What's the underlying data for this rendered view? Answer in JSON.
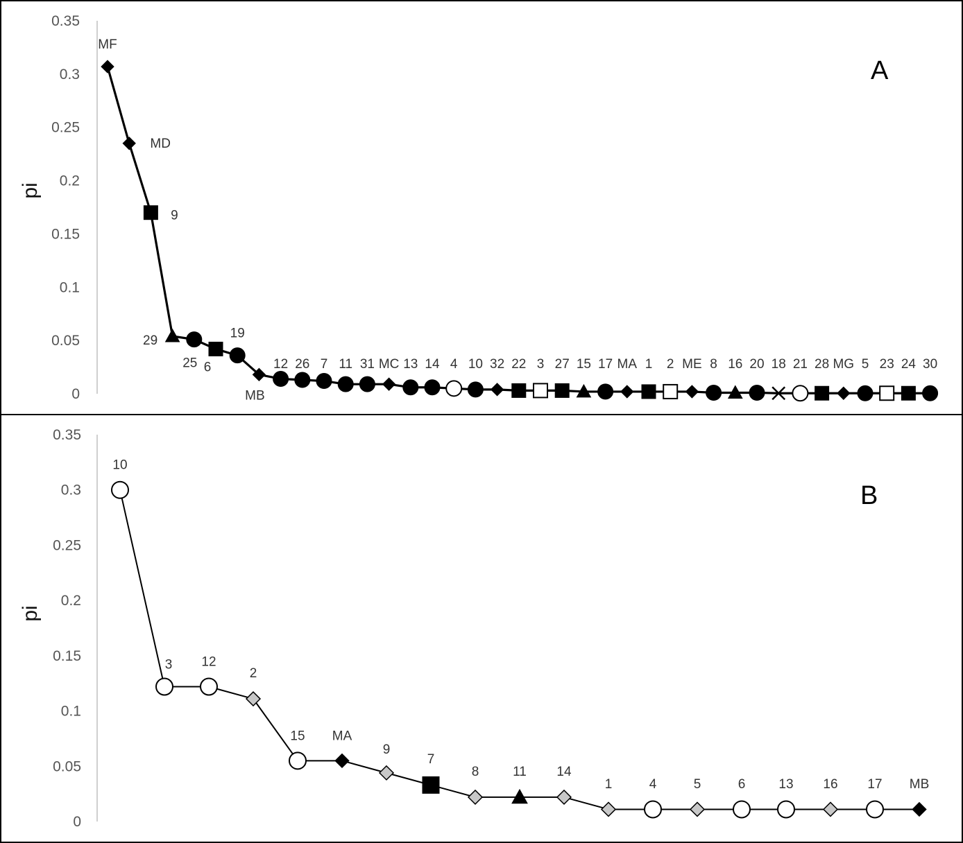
{
  "chart_data": [
    {
      "panel": "A",
      "type": "line",
      "ylabel": "pi",
      "ylim": [
        0,
        0.35
      ],
      "yticks": [
        "0",
        "0.05",
        "0.1",
        "0.15",
        "0.2",
        "0.25",
        "0.3",
        "0.35"
      ],
      "points": [
        {
          "label": "MF",
          "value": 0.307,
          "marker": "diamond",
          "fill": "black"
        },
        {
          "label": "MD",
          "value": 0.235,
          "marker": "diamond",
          "fill": "black"
        },
        {
          "label": "9",
          "value": 0.17,
          "marker": "square",
          "fill": "black"
        },
        {
          "label": "29",
          "value": 0.054,
          "marker": "triangle",
          "fill": "black"
        },
        {
          "label": "25",
          "value": 0.051,
          "marker": "circle",
          "fill": "black"
        },
        {
          "label": "6",
          "value": 0.042,
          "marker": "square",
          "fill": "black"
        },
        {
          "label": "19",
          "value": 0.036,
          "marker": "circle",
          "fill": "black"
        },
        {
          "label": "MB",
          "value": 0.018,
          "marker": "diamond",
          "fill": "black"
        },
        {
          "label": "12",
          "value": 0.014,
          "marker": "circle",
          "fill": "black"
        },
        {
          "label": "26",
          "value": 0.013,
          "marker": "circle",
          "fill": "black"
        },
        {
          "label": "7",
          "value": 0.012,
          "marker": "circle",
          "fill": "black"
        },
        {
          "label": "11",
          "value": 0.009,
          "marker": "circle",
          "fill": "black"
        },
        {
          "label": "31",
          "value": 0.009,
          "marker": "circle",
          "fill": "black"
        },
        {
          "label": "MC",
          "value": 0.009,
          "marker": "diamond",
          "fill": "black"
        },
        {
          "label": "13",
          "value": 0.006,
          "marker": "circle",
          "fill": "black"
        },
        {
          "label": "14",
          "value": 0.006,
          "marker": "circle",
          "fill": "black"
        },
        {
          "label": "4",
          "value": 0.005,
          "marker": "circle",
          "fill": "white"
        },
        {
          "label": "10",
          "value": 0.004,
          "marker": "circle",
          "fill": "black"
        },
        {
          "label": "32",
          "value": 0.004,
          "marker": "diamond",
          "fill": "black"
        },
        {
          "label": "22",
          "value": 0.003,
          "marker": "square",
          "fill": "black"
        },
        {
          "label": "3",
          "value": 0.003,
          "marker": "square",
          "fill": "white"
        },
        {
          "label": "27",
          "value": 0.003,
          "marker": "square",
          "fill": "black"
        },
        {
          "label": "15",
          "value": 0.002,
          "marker": "triangle",
          "fill": "black"
        },
        {
          "label": "17",
          "value": 0.002,
          "marker": "circle",
          "fill": "black"
        },
        {
          "label": "MA",
          "value": 0.002,
          "marker": "diamond",
          "fill": "black"
        },
        {
          "label": "1",
          "value": 0.002,
          "marker": "square",
          "fill": "black"
        },
        {
          "label": "2",
          "value": 0.002,
          "marker": "square",
          "fill": "white"
        },
        {
          "label": "ME",
          "value": 0.002,
          "marker": "diamond",
          "fill": "black"
        },
        {
          "label": "8",
          "value": 0.001,
          "marker": "circle",
          "fill": "black"
        },
        {
          "label": "16",
          "value": 0.001,
          "marker": "triangle",
          "fill": "black"
        },
        {
          "label": "20",
          "value": 0.001,
          "marker": "circle",
          "fill": "black"
        },
        {
          "label": "18",
          "value": 0.0005,
          "marker": "cross",
          "fill": "black"
        },
        {
          "label": "21",
          "value": 0.0005,
          "marker": "circle",
          "fill": "white"
        },
        {
          "label": "28",
          "value": 0.0005,
          "marker": "square",
          "fill": "black"
        },
        {
          "label": "MG",
          "value": 0.0005,
          "marker": "diamond",
          "fill": "black"
        },
        {
          "label": "5",
          "value": 0.0005,
          "marker": "circle",
          "fill": "black"
        },
        {
          "label": "23",
          "value": 0.0005,
          "marker": "square",
          "fill": "white"
        },
        {
          "label": "24",
          "value": 0.0005,
          "marker": "square",
          "fill": "black"
        },
        {
          "label": "30",
          "value": 0.0005,
          "marker": "circle",
          "fill": "black"
        }
      ]
    },
    {
      "panel": "B",
      "type": "line",
      "ylabel": "pi",
      "ylim": [
        0,
        0.35
      ],
      "yticks": [
        "0",
        "0.05",
        "0.1",
        "0.15",
        "0.2",
        "0.25",
        "0.3",
        "0.35"
      ],
      "points": [
        {
          "label": "10",
          "value": 0.3,
          "marker": "circle",
          "fill": "white"
        },
        {
          "label": "3",
          "value": 0.122,
          "marker": "circle",
          "fill": "white"
        },
        {
          "label": "12",
          "value": 0.122,
          "marker": "circle",
          "fill": "white"
        },
        {
          "label": "2",
          "value": 0.111,
          "marker": "diamond",
          "fill": "gray"
        },
        {
          "label": "15",
          "value": 0.055,
          "marker": "circle",
          "fill": "white"
        },
        {
          "label": "MA",
          "value": 0.055,
          "marker": "diamond",
          "fill": "black"
        },
        {
          "label": "9",
          "value": 0.044,
          "marker": "diamond",
          "fill": "gray"
        },
        {
          "label": "7",
          "value": 0.033,
          "marker": "square",
          "fill": "black"
        },
        {
          "label": "8",
          "value": 0.022,
          "marker": "diamond",
          "fill": "gray"
        },
        {
          "label": "11",
          "value": 0.022,
          "marker": "triangle",
          "fill": "black"
        },
        {
          "label": "14",
          "value": 0.022,
          "marker": "diamond",
          "fill": "gray"
        },
        {
          "label": "1",
          "value": 0.011,
          "marker": "diamond",
          "fill": "gray"
        },
        {
          "label": "4",
          "value": 0.011,
          "marker": "circle",
          "fill": "white"
        },
        {
          "label": "5",
          "value": 0.011,
          "marker": "diamond",
          "fill": "gray"
        },
        {
          "label": "6",
          "value": 0.011,
          "marker": "circle",
          "fill": "white"
        },
        {
          "label": "13",
          "value": 0.011,
          "marker": "circle",
          "fill": "white"
        },
        {
          "label": "16",
          "value": 0.011,
          "marker": "diamond",
          "fill": "gray"
        },
        {
          "label": "17",
          "value": 0.011,
          "marker": "circle",
          "fill": "white"
        },
        {
          "label": "MB",
          "value": 0.011,
          "marker": "diamond",
          "fill": "black"
        }
      ]
    }
  ],
  "colors": {
    "black": "#000000",
    "white": "#ffffff",
    "gray": "#c8c8c8",
    "axis": "#bfbfbf",
    "frame": "#000000"
  }
}
